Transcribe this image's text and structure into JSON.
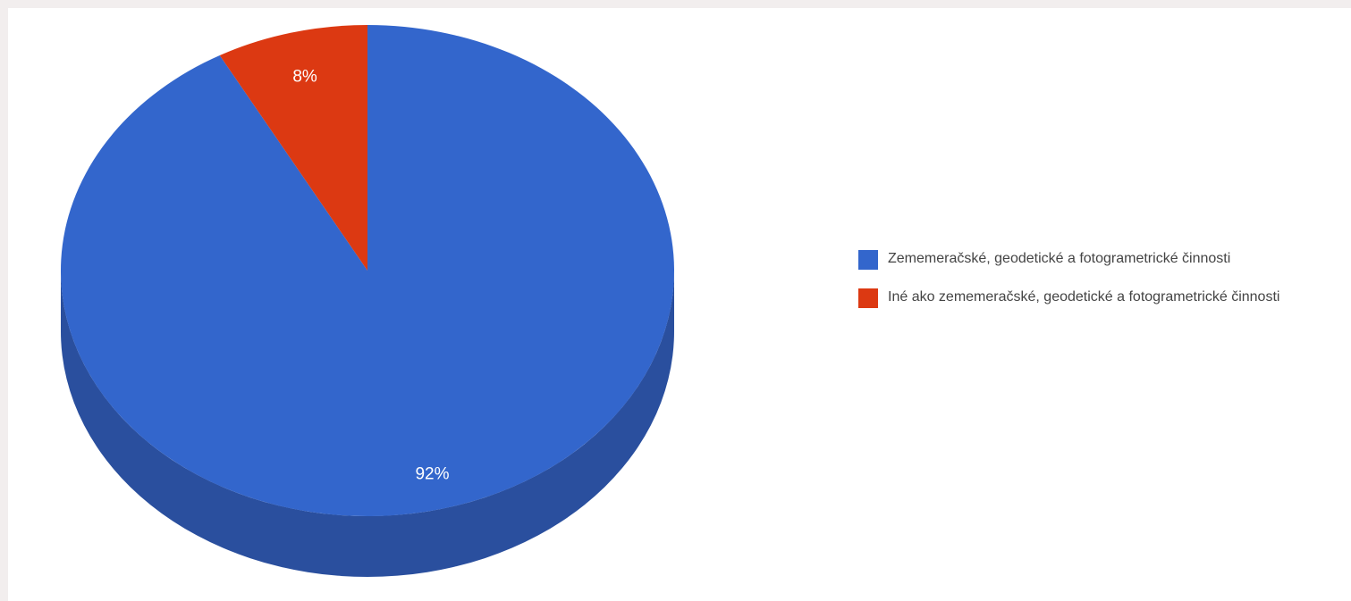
{
  "chart_data": {
    "type": "pie",
    "three_d": true,
    "start_angle_deg": 0,
    "direction": "clockwise",
    "legend_position": "right",
    "slices": [
      {
        "label": "Zememeračské, geodetické a fotogrametrické činnosti",
        "value": 92,
        "display": "92%",
        "color": "#3366cc",
        "side_color": "#2a4f9e"
      },
      {
        "label": "Iné ako zememeračské, geodetické a fotogrametrické činnosti",
        "value": 8,
        "display": "8%",
        "color": "#dc3912",
        "side_color": "#a52a0d"
      }
    ]
  }
}
